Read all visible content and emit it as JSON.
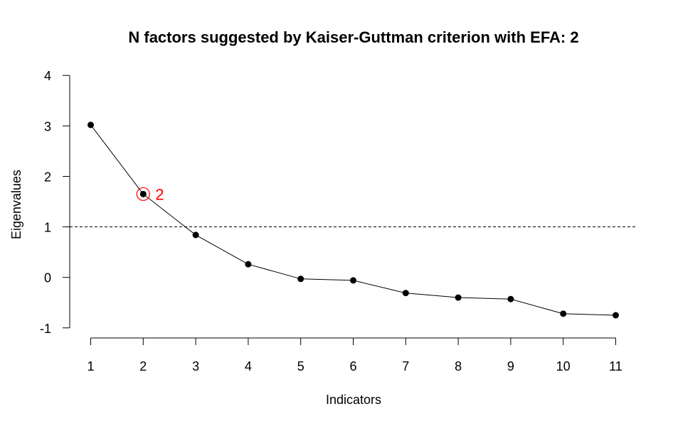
{
  "chart_data": {
    "type": "line",
    "title": "N factors suggested by Kaiser-Guttman criterion with EFA: 2",
    "xlabel": "Indicators",
    "ylabel": "Eigenvalues",
    "x": [
      1,
      2,
      3,
      4,
      5,
      6,
      7,
      8,
      9,
      10,
      11
    ],
    "xticks": [
      1,
      2,
      3,
      4,
      5,
      6,
      7,
      8,
      9,
      10,
      11
    ],
    "yticks": [
      -1,
      0,
      1,
      2,
      3,
      4
    ],
    "xlim": [
      0.6,
      11.4
    ],
    "ylim": [
      -1.2,
      4.2
    ],
    "series": [
      {
        "values": [
          3.02,
          1.65,
          0.84,
          0.26,
          -0.03,
          -0.06,
          -0.31,
          -0.4,
          -0.43,
          -0.72,
          -0.75
        ]
      }
    ],
    "reference_line": {
      "y": 1,
      "style": "dashed"
    },
    "annotation": {
      "x": 2,
      "y": 1.65,
      "label": "2",
      "color": "#ff0000"
    },
    "grid": false,
    "legend": "none"
  }
}
